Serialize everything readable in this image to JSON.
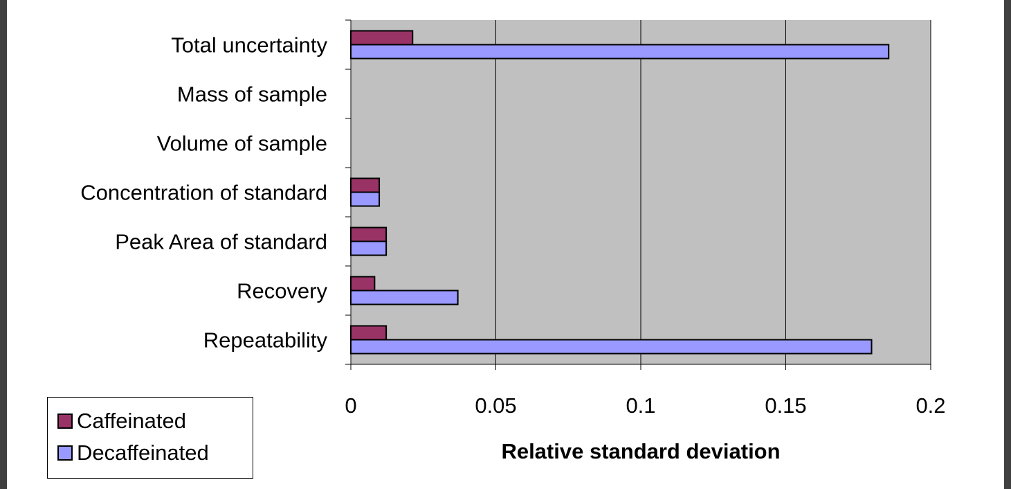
{
  "chart_data": {
    "type": "bar",
    "orientation": "horizontal",
    "categories": [
      "Total uncertainty",
      "Mass of sample",
      "Volume of sample",
      "Concentration of standard",
      "Peak Area of standard",
      "Recovery",
      "Repeatability"
    ],
    "series": [
      {
        "name": "Caffeinated",
        "color": "#993366",
        "values": [
          0.0213,
          0,
          0,
          0.0098,
          0.0122,
          0.0082,
          0.0122
        ]
      },
      {
        "name": "Decaffeinated",
        "color": "#9999ff",
        "values": [
          0.1855,
          0,
          0,
          0.0098,
          0.0122,
          0.0369,
          0.1796
        ]
      }
    ],
    "xlabel": "Relative standard deviation",
    "ylabel": "",
    "title": "",
    "xlim": [
      0,
      0.2
    ],
    "xticks": [
      "0",
      "0.05",
      "0.1",
      "0.15",
      "0.2"
    ],
    "plot_background": "#c0c0c0",
    "grid": "vertical",
    "legend_position": "bottom-left"
  },
  "legend": {
    "items": [
      {
        "label": "Caffeinated",
        "color": "#993366"
      },
      {
        "label": "Decaffeinated",
        "color": "#9999ff"
      }
    ]
  }
}
